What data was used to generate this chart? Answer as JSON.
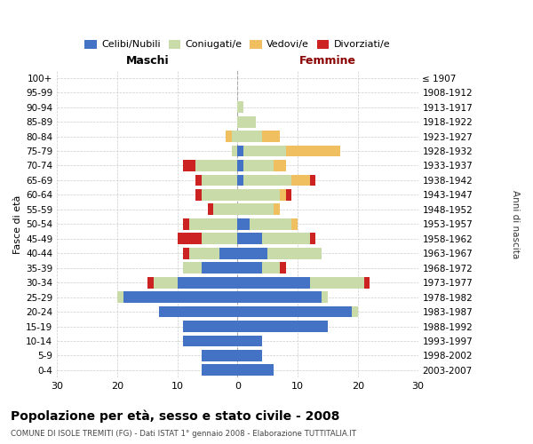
{
  "age_groups": [
    "0-4",
    "5-9",
    "10-14",
    "15-19",
    "20-24",
    "25-29",
    "30-34",
    "35-39",
    "40-44",
    "45-49",
    "50-54",
    "55-59",
    "60-64",
    "65-69",
    "70-74",
    "75-79",
    "80-84",
    "85-89",
    "90-94",
    "95-99",
    "100+"
  ],
  "birth_years": [
    "2003-2007",
    "1998-2002",
    "1993-1997",
    "1988-1992",
    "1983-1987",
    "1978-1982",
    "1973-1977",
    "1968-1972",
    "1963-1967",
    "1958-1962",
    "1953-1957",
    "1948-1952",
    "1943-1947",
    "1938-1942",
    "1933-1937",
    "1928-1932",
    "1923-1927",
    "1918-1922",
    "1913-1917",
    "1908-1912",
    "≤ 1907"
  ],
  "male_celibi": [
    6,
    6,
    9,
    9,
    13,
    19,
    10,
    6,
    3,
    0,
    0,
    0,
    0,
    0,
    0,
    0,
    0,
    0,
    0,
    0,
    0
  ],
  "male_coniugati": [
    0,
    0,
    0,
    0,
    0,
    1,
    4,
    3,
    5,
    6,
    8,
    4,
    6,
    6,
    7,
    1,
    1,
    0,
    0,
    0,
    0
  ],
  "male_vedovi": [
    0,
    0,
    0,
    0,
    0,
    0,
    0,
    0,
    0,
    0,
    0,
    0,
    0,
    0,
    0,
    0,
    1,
    0,
    0,
    0,
    0
  ],
  "male_divorziati": [
    0,
    0,
    0,
    0,
    0,
    0,
    1,
    0,
    1,
    4,
    1,
    1,
    1,
    1,
    2,
    0,
    0,
    0,
    0,
    0,
    0
  ],
  "female_celibi": [
    6,
    4,
    4,
    15,
    19,
    14,
    12,
    4,
    5,
    4,
    2,
    0,
    0,
    1,
    1,
    1,
    0,
    0,
    0,
    0,
    0
  ],
  "female_coniugati": [
    0,
    0,
    0,
    0,
    1,
    1,
    9,
    3,
    9,
    8,
    7,
    6,
    7,
    8,
    5,
    7,
    4,
    3,
    1,
    0,
    0
  ],
  "female_vedovi": [
    0,
    0,
    0,
    0,
    0,
    0,
    0,
    0,
    0,
    0,
    1,
    1,
    1,
    3,
    2,
    9,
    3,
    0,
    0,
    0,
    0
  ],
  "female_divorziati": [
    0,
    0,
    0,
    0,
    0,
    0,
    1,
    1,
    0,
    1,
    0,
    0,
    1,
    1,
    0,
    0,
    0,
    0,
    0,
    0,
    0
  ],
  "color_celibi": "#4472c4",
  "color_coniugati": "#c8dba8",
  "color_vedovi": "#f0c060",
  "color_divorziati": "#cc2222",
  "title": "Popolazione per età, sesso e stato civile - 2008",
  "subtitle": "COMUNE DI ISOLE TREMITI (FG) - Dati ISTAT 1° gennaio 2008 - Elaborazione TUTTITALIA.IT",
  "xlabel_left": "Maschi",
  "xlabel_right": "Femmine",
  "ylabel_left": "Fasce di età",
  "ylabel_right": "Anni di nascita",
  "xlim": 30,
  "bg_color": "#ffffff",
  "grid_color": "#cccccc"
}
